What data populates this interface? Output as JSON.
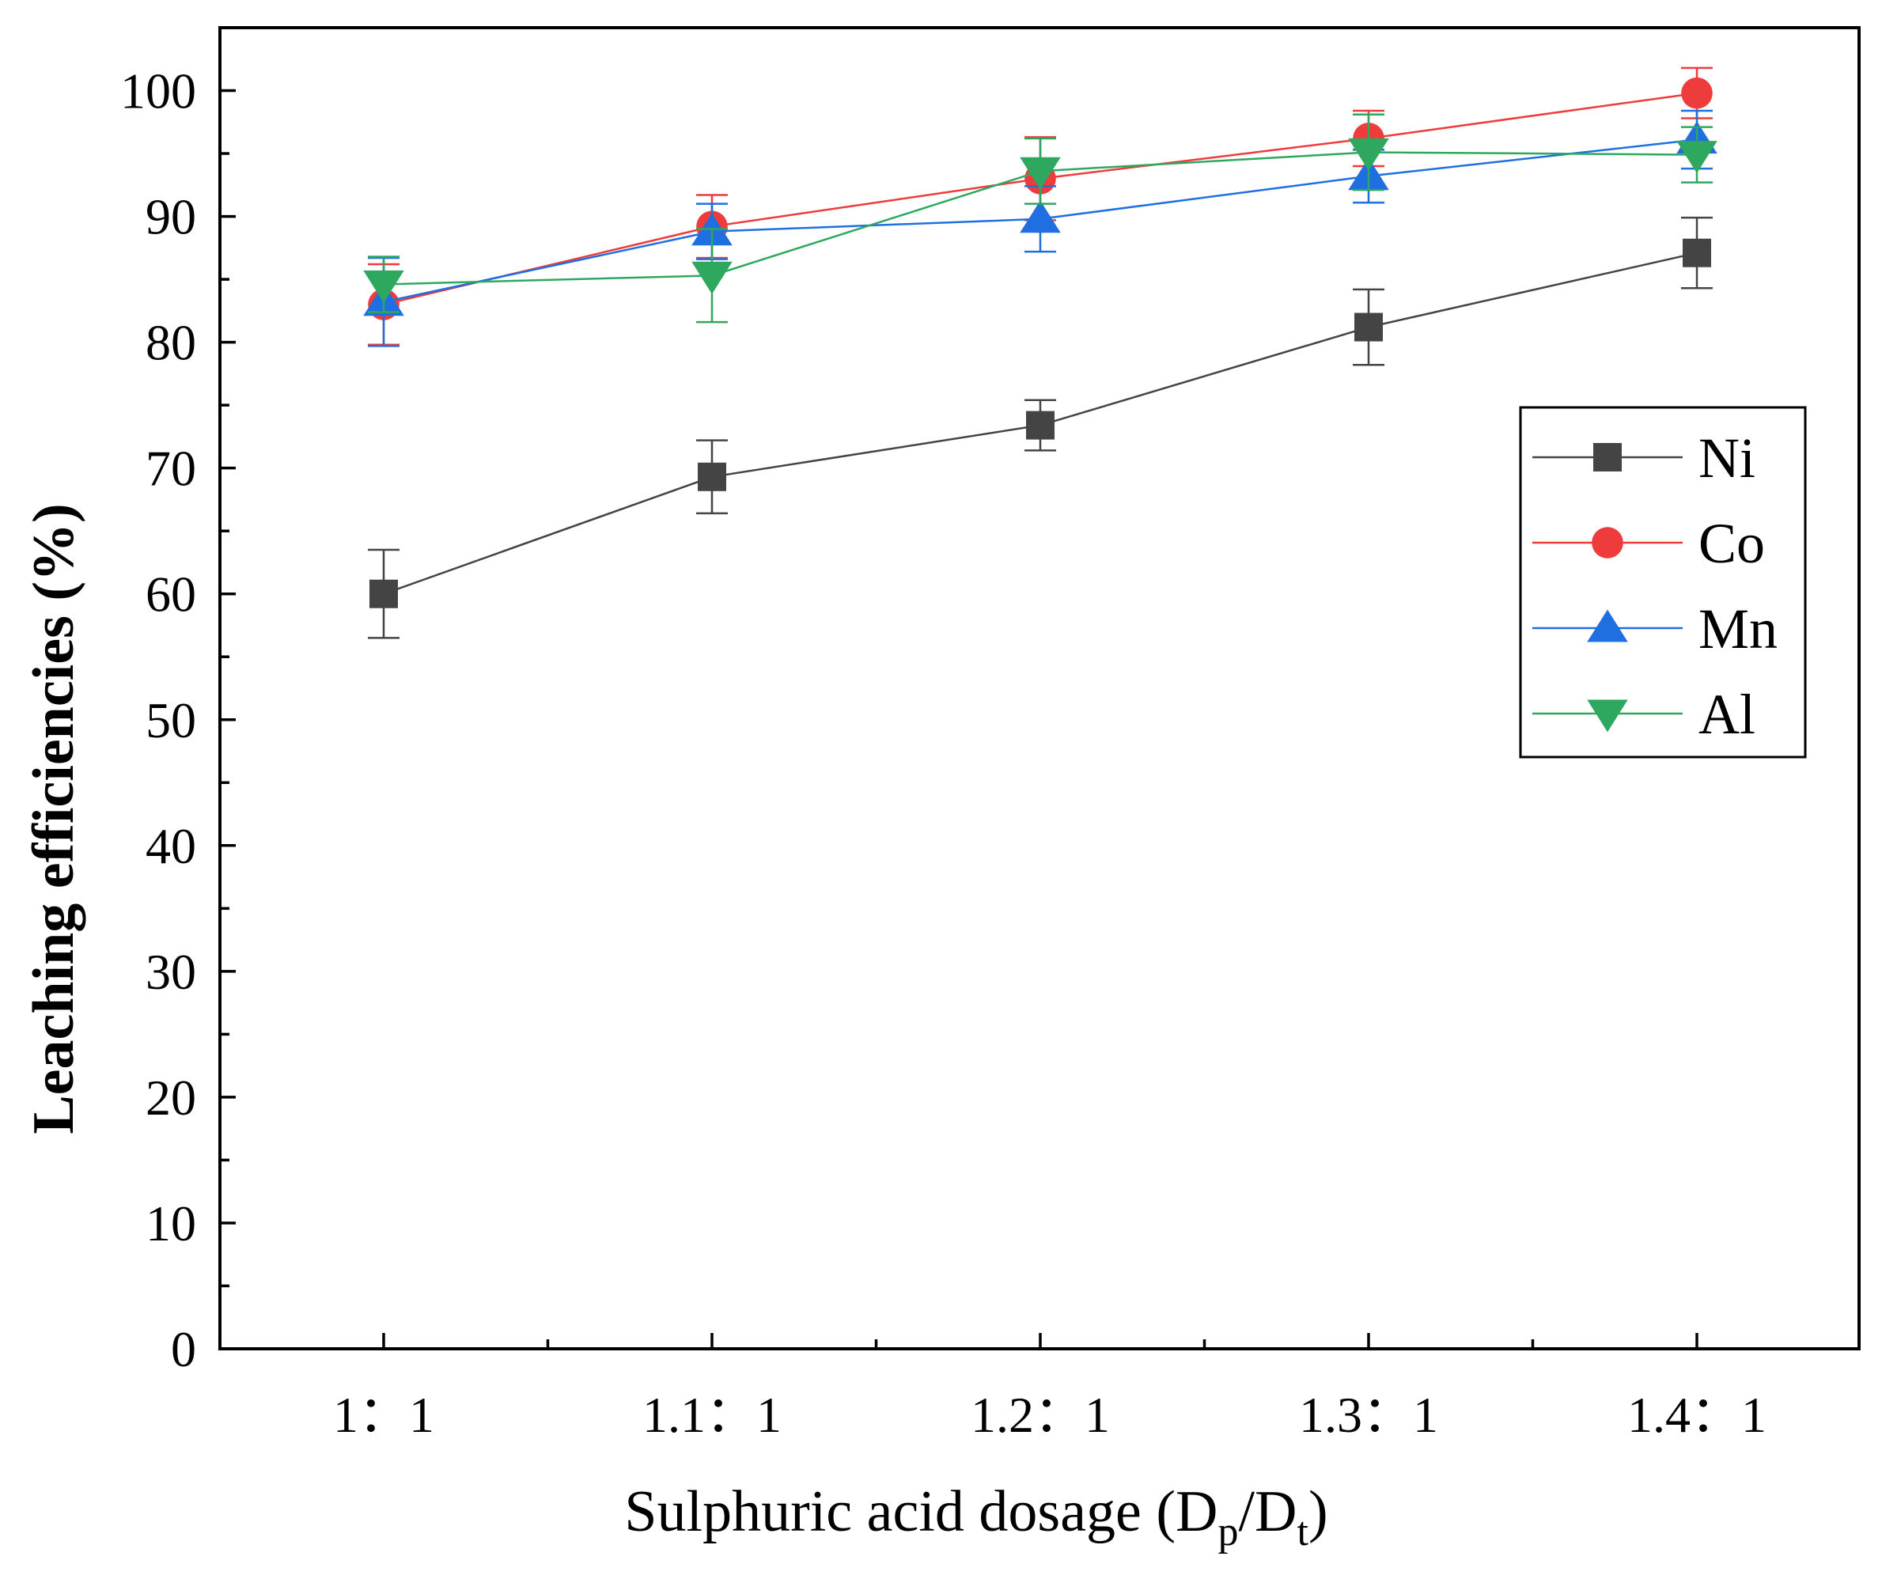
{
  "chart_data": {
    "type": "line",
    "title": "",
    "xlabel": {
      "main": "Sulphuric acid dosage (D",
      "sub1": "p",
      "mid": "/D",
      "sub2": "t",
      "end": ")"
    },
    "ylabel": "Leaching efficiencies (%)",
    "categories": [
      "1：1",
      "1.1：1",
      "1.2：1",
      "1.3：1",
      "1.4：1"
    ],
    "ylim": [
      0,
      105
    ],
    "yticks": [
      "0",
      "10",
      "20",
      "30",
      "40",
      "50",
      "60",
      "70",
      "80",
      "90",
      "100"
    ],
    "grid": false,
    "legend_position": "right-middle",
    "series": [
      {
        "name": "Ni",
        "color": "#444444",
        "marker": "square",
        "values": [
          60.0,
          69.3,
          73.4,
          81.2,
          87.1
        ],
        "errors": [
          3.5,
          2.9,
          2.0,
          3.0,
          2.8
        ]
      },
      {
        "name": "Co",
        "color": "#ee3b3b",
        "marker": "circle",
        "values": [
          83.0,
          89.2,
          93.0,
          96.2,
          99.8
        ],
        "errors": [
          3.2,
          2.5,
          3.3,
          2.2,
          2.0
        ]
      },
      {
        "name": "Mn",
        "color": "#1f6fe0",
        "marker": "triangle-up",
        "values": [
          83.2,
          88.8,
          89.8,
          93.2,
          96.1
        ],
        "errors": [
          3.5,
          2.2,
          2.6,
          2.1,
          2.3
        ]
      },
      {
        "name": "Al",
        "color": "#2ea85f",
        "marker": "triangle-down",
        "values": [
          84.6,
          85.3,
          93.6,
          95.1,
          94.9
        ],
        "errors": [
          2.2,
          3.7,
          2.6,
          3.0,
          2.2
        ]
      }
    ]
  }
}
